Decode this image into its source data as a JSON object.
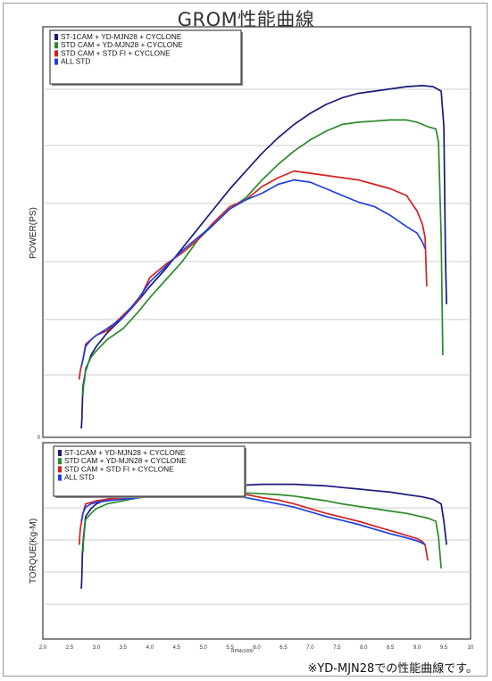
{
  "title": "GROM性能曲線",
  "note": "※YD-MJN28での性能曲線です。",
  "chart_data": [
    {
      "type": "line",
      "ylabel": "POWER(PS)",
      "y_tick_labels": [
        "0"
      ],
      "grid": true,
      "legend_position": "top-left",
      "series": [
        {
          "name": "ST-1CAM + YD-MJN28 + CYCLONE",
          "color": "#1a1a7a",
          "x": [
            2.72,
            2.73,
            2.74,
            2.75,
            2.8,
            2.9,
            3.0,
            3.2,
            3.5,
            3.8,
            4.0,
            4.3,
            4.6,
            4.9,
            5.2,
            5.5,
            5.8,
            6.1,
            6.4,
            6.7,
            7.0,
            7.3,
            7.6,
            7.9,
            8.2,
            8.5,
            8.8,
            9.1,
            9.3,
            9.45,
            9.5,
            9.53,
            9.55
          ],
          "y": [
            0.4,
            0.8,
            1.6,
            2.3,
            3.0,
            3.7,
            4.1,
            4.7,
            5.4,
            6.2,
            6.8,
            7.6,
            8.5,
            9.4,
            10.3,
            11.2,
            12.0,
            12.8,
            13.5,
            14.1,
            14.6,
            15.0,
            15.3,
            15.5,
            15.6,
            15.7,
            15.8,
            15.85,
            15.8,
            15.6,
            14.0,
            8.0,
            6.0
          ]
        },
        {
          "name": "STD CAM + YD-MJN28 + CYCLONE",
          "color": "#2a8a2a",
          "x": [
            2.75,
            2.76,
            2.78,
            2.8,
            2.9,
            3.0,
            3.2,
            3.5,
            3.8,
            4.0,
            4.3,
            4.6,
            4.9,
            5.2,
            5.5,
            5.8,
            6.1,
            6.4,
            6.7,
            7.0,
            7.3,
            7.6,
            7.9,
            8.2,
            8.5,
            8.8,
            9.0,
            9.2,
            9.35,
            9.4,
            9.45,
            9.48
          ],
          "y": [
            1.9,
            2.3,
            2.6,
            3.1,
            3.6,
            3.9,
            4.4,
            4.9,
            5.7,
            6.3,
            7.1,
            7.9,
            8.9,
            9.6,
            10.3,
            10.8,
            11.6,
            12.3,
            12.9,
            13.4,
            13.8,
            14.1,
            14.2,
            14.25,
            14.3,
            14.3,
            14.2,
            14.0,
            13.9,
            13.3,
            9.0,
            3.7
          ]
        },
        {
          "name": "STD CAM + STD FI + CYCLONE",
          "color": "#d42020",
          "x": [
            2.68,
            2.7,
            2.75,
            2.8,
            2.9,
            3.0,
            3.2,
            3.5,
            3.8,
            4.0,
            4.3,
            4.6,
            4.9,
            5.2,
            5.5,
            5.8,
            6.1,
            6.4,
            6.7,
            7.0,
            7.3,
            7.6,
            7.9,
            8.2,
            8.5,
            8.8,
            9.0,
            9.1,
            9.15,
            9.18
          ],
          "y": [
            2.6,
            3.0,
            3.5,
            4.2,
            4.4,
            4.6,
            4.8,
            5.5,
            6.2,
            7.2,
            7.8,
            8.3,
            8.9,
            9.7,
            10.4,
            10.7,
            11.3,
            11.7,
            12.0,
            11.9,
            11.8,
            11.7,
            11.6,
            11.4,
            11.2,
            10.9,
            10.2,
            9.6,
            9.0,
            6.8
          ]
        },
        {
          "name": "ALL STD",
          "color": "#2040e0",
          "x": [
            2.72,
            2.75,
            2.8,
            2.9,
            3.0,
            3.2,
            3.5,
            3.8,
            4.0,
            4.3,
            4.6,
            4.9,
            5.2,
            5.5,
            5.8,
            6.1,
            6.4,
            6.7,
            7.0,
            7.3,
            7.6,
            7.9,
            8.2,
            8.5,
            8.8,
            9.0,
            9.1,
            9.15
          ],
          "y": [
            3.2,
            3.5,
            4.1,
            4.4,
            4.6,
            4.9,
            5.4,
            6.3,
            7.0,
            7.7,
            8.4,
            9.0,
            9.6,
            10.3,
            10.7,
            11.0,
            11.4,
            11.6,
            11.5,
            11.2,
            10.9,
            10.6,
            10.4,
            10.0,
            9.5,
            9.2,
            8.8,
            8.5
          ]
        }
      ]
    },
    {
      "type": "line",
      "ylabel": "TORQUE(Kg-M)",
      "x_tick_labels": [
        "2.0",
        "2.5",
        "3.0",
        "3.5",
        "4.0",
        "4.5",
        "5.0",
        "5.5",
        "6.0",
        "6.5",
        "7.0",
        "7.5",
        "8.0",
        "8.5",
        "9.0",
        "9.5",
        "10"
      ],
      "xlabel": "RPMx1000",
      "grid": true,
      "legend_position": "top-left",
      "series": [
        {
          "name": "ST-1CAM + YD-MJN28 + CYCLONE",
          "color": "#1a1a7a",
          "x": [
            2.72,
            2.73,
            2.74,
            2.76,
            2.8,
            2.9,
            3.0,
            3.2,
            3.5,
            3.8,
            4.0,
            4.3,
            4.6,
            4.9,
            5.2,
            5.5,
            5.8,
            6.1,
            6.4,
            6.7,
            7.0,
            7.3,
            7.6,
            7.9,
            8.2,
            8.5,
            8.8,
            9.1,
            9.3,
            9.45,
            9.5,
            9.55
          ],
          "y": [
            0.32,
            0.4,
            0.55,
            0.65,
            0.78,
            0.83,
            0.86,
            0.89,
            0.91,
            0.93,
            0.94,
            0.95,
            0.95,
            0.96,
            0.97,
            0.975,
            0.98,
            0.985,
            0.985,
            0.985,
            0.98,
            0.975,
            0.965,
            0.955,
            0.945,
            0.935,
            0.92,
            0.905,
            0.89,
            0.86,
            0.75,
            0.6
          ]
        },
        {
          "name": "STD CAM + YD-MJN28 + CYCLONE",
          "color": "#2a8a2a",
          "x": [
            2.75,
            2.76,
            2.78,
            2.8,
            2.9,
            3.0,
            3.2,
            3.5,
            3.8,
            4.0,
            4.3,
            4.6,
            4.9,
            5.2,
            5.5,
            5.8,
            6.1,
            6.4,
            6.7,
            7.0,
            7.3,
            7.6,
            7.9,
            8.2,
            8.5,
            8.8,
            9.0,
            9.2,
            9.35,
            9.4,
            9.45
          ],
          "y": [
            0.55,
            0.62,
            0.7,
            0.76,
            0.8,
            0.83,
            0.86,
            0.88,
            0.9,
            0.91,
            0.92,
            0.93,
            0.935,
            0.94,
            0.935,
            0.93,
            0.925,
            0.92,
            0.91,
            0.895,
            0.88,
            0.86,
            0.845,
            0.83,
            0.815,
            0.8,
            0.785,
            0.77,
            0.75,
            0.65,
            0.45
          ]
        },
        {
          "name": "STD CAM + STD FI + CYCLONE",
          "color": "#d42020",
          "x": [
            2.68,
            2.7,
            2.75,
            2.8,
            2.9,
            3.0,
            3.2,
            3.5,
            3.8,
            4.0,
            4.3,
            4.6,
            4.9,
            5.2,
            5.5,
            5.8,
            6.1,
            6.4,
            6.7,
            7.0,
            7.3,
            7.6,
            7.9,
            8.2,
            8.5,
            8.8,
            9.0,
            9.1,
            9.15,
            9.2
          ],
          "y": [
            0.6,
            0.7,
            0.8,
            0.86,
            0.87,
            0.88,
            0.89,
            0.9,
            0.91,
            0.93,
            0.94,
            0.94,
            0.94,
            0.945,
            0.935,
            0.92,
            0.9,
            0.885,
            0.86,
            0.83,
            0.8,
            0.775,
            0.75,
            0.72,
            0.69,
            0.66,
            0.64,
            0.62,
            0.6,
            0.5
          ]
        },
        {
          "name": "ALL STD",
          "color": "#2040e0",
          "x": [
            2.72,
            2.75,
            2.8,
            2.9,
            3.0,
            3.2,
            3.5,
            3.8,
            4.0,
            4.3,
            4.6,
            4.9,
            5.2,
            5.5,
            5.8,
            6.1,
            6.4,
            6.7,
            7.0,
            7.3,
            7.6,
            7.9,
            8.2,
            8.5,
            8.8,
            9.0,
            9.1,
            9.15
          ],
          "y": [
            0.75,
            0.8,
            0.84,
            0.86,
            0.87,
            0.88,
            0.89,
            0.9,
            0.91,
            0.92,
            0.93,
            0.935,
            0.93,
            0.915,
            0.9,
            0.88,
            0.86,
            0.84,
            0.81,
            0.78,
            0.755,
            0.73,
            0.7,
            0.67,
            0.645,
            0.625,
            0.61,
            0.6
          ]
        }
      ]
    }
  ]
}
